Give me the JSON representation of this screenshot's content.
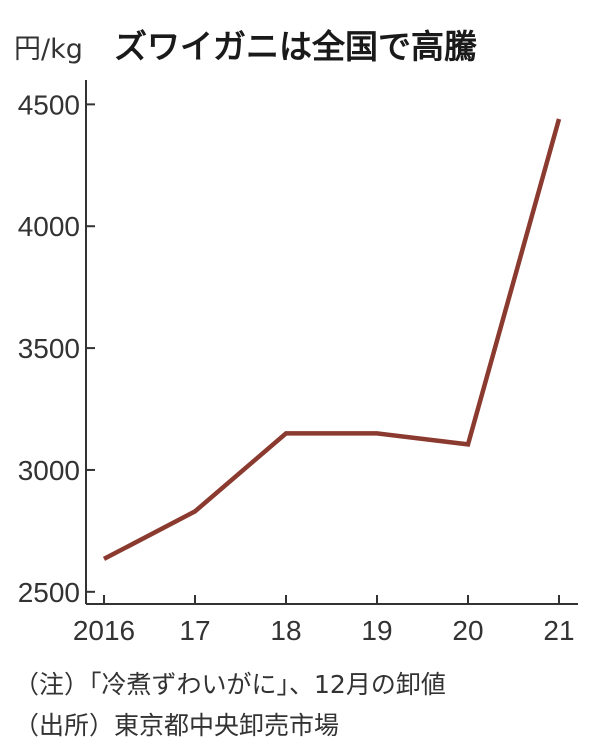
{
  "chart_data": {
    "type": "line",
    "title": "ズワイガニは全国で高騰",
    "ylabel": "円/kg",
    "categories": [
      "2016",
      "17",
      "18",
      "19",
      "20",
      "21"
    ],
    "series": [
      {
        "values": [
          2635,
          2830,
          3150,
          3150,
          3105,
          4440
        ]
      }
    ],
    "ylim": [
      2450,
      4600
    ],
    "yticks": [
      2500,
      3000,
      3500,
      4000,
      4500
    ],
    "grid": false,
    "line_color": "#8B3A2F"
  },
  "notes": [
    "（注）「冷煮ずわいがに」、12月の卸値",
    "（出所）東京都中央卸売市場"
  ]
}
